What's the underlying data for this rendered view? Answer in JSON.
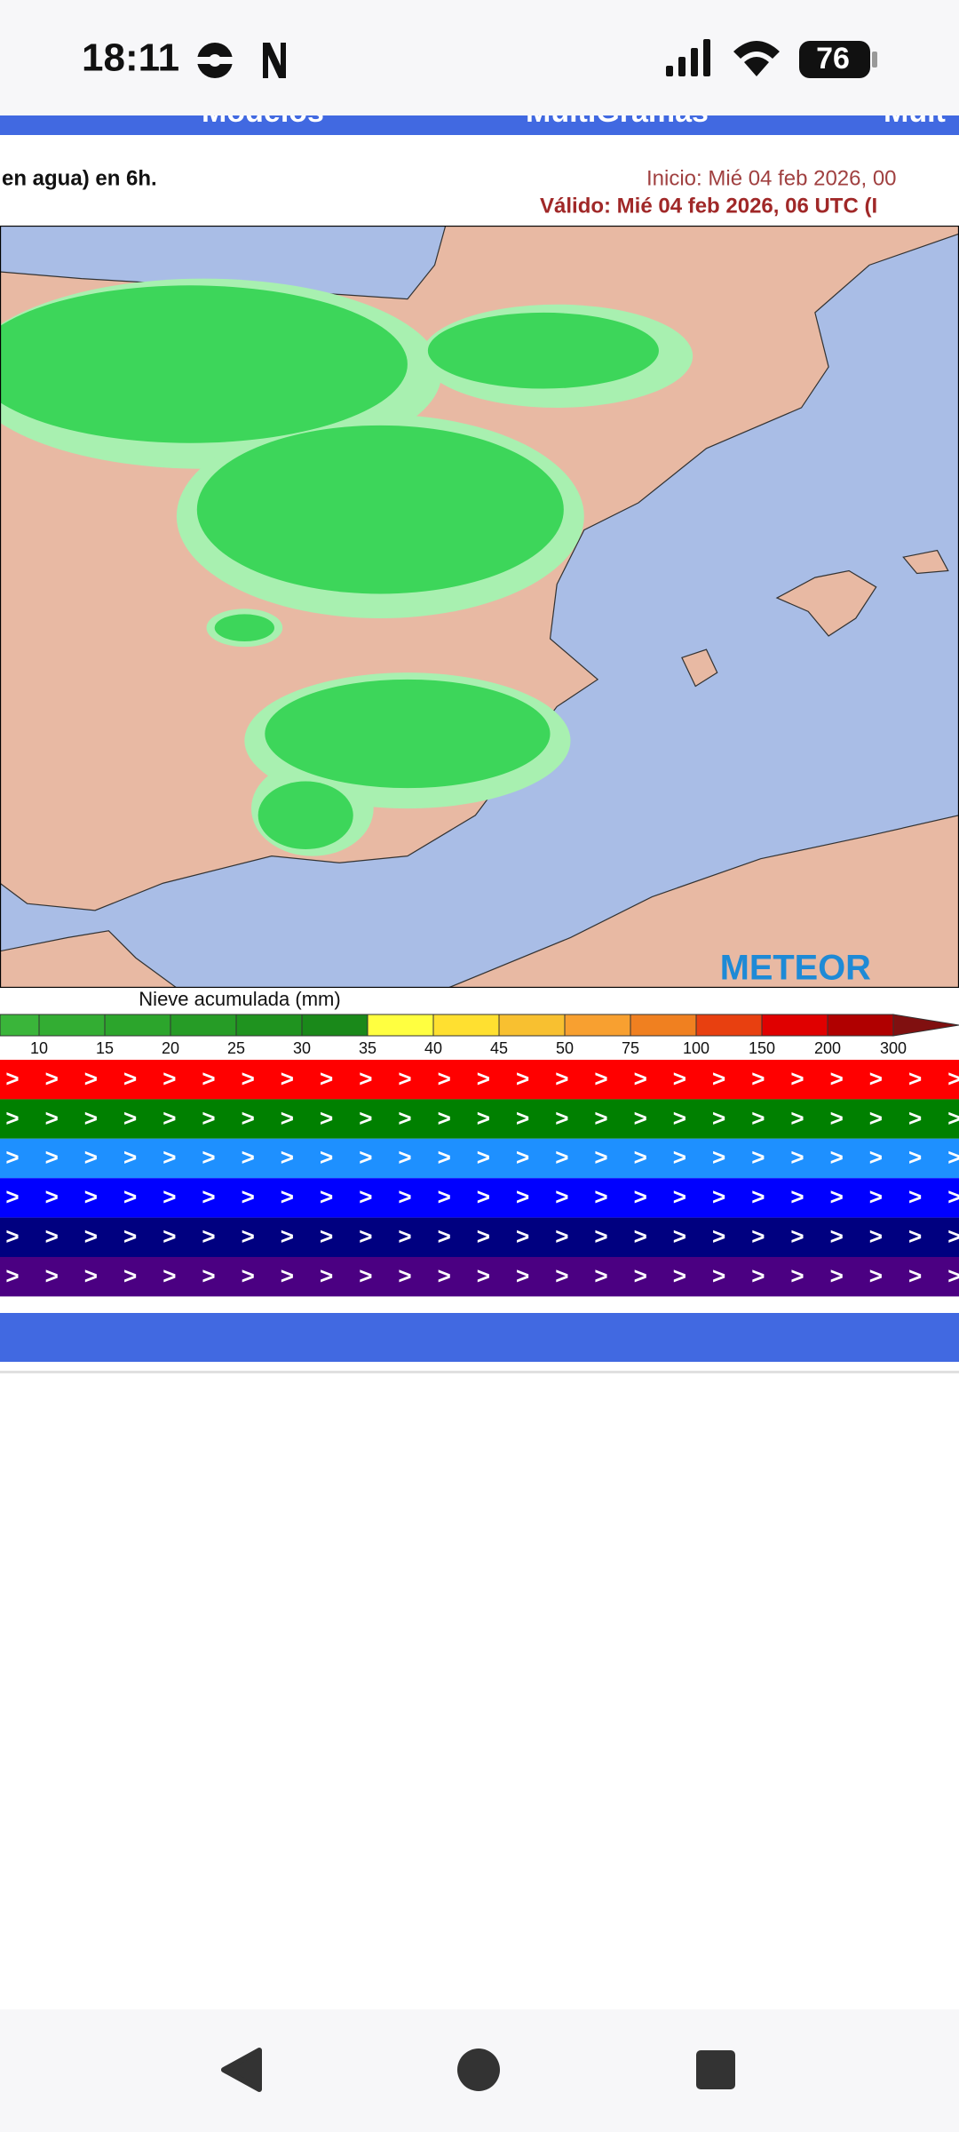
{
  "status_bar": {
    "time": "18:11",
    "battery": "76"
  },
  "nav_tabs": [
    "Modelos",
    "MultiGramas",
    "Mult"
  ],
  "header": {
    "title": "en agua) en 6h.",
    "start": "Inicio: Mié 04 feb 2026, 00",
    "valid": "Válido: Mié 04 feb 2026, 06 UTC (I"
  },
  "map": {
    "watermark": "METEOR"
  },
  "legend": {
    "title": "Nieve acumulada (mm)",
    "labels": [
      "10",
      "15",
      "20",
      "25",
      "30",
      "35",
      "40",
      "45",
      "50",
      "75",
      "100",
      "150",
      "200",
      "300"
    ]
  },
  "arrow_rows": {
    "symbol": ">",
    "colors": [
      "#ff0000",
      "#008000",
      "#1e90ff",
      "#0000ff",
      "#000080",
      "#4b0082"
    ]
  }
}
